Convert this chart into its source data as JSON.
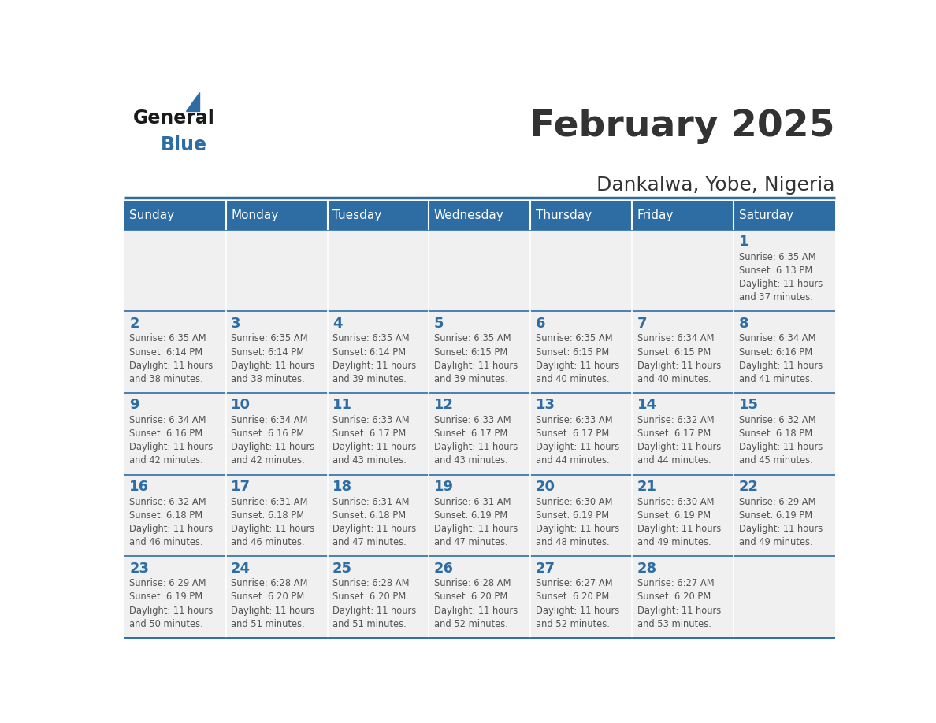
{
  "title": "February 2025",
  "subtitle": "Dankalwa, Yobe, Nigeria",
  "header_bg": "#2E6DA4",
  "header_text": "#FFFFFF",
  "cell_bg_light": "#F0F0F0",
  "text_color": "#333333",
  "day_number_color": "#2E6DA4",
  "days_of_week": [
    "Sunday",
    "Monday",
    "Tuesday",
    "Wednesday",
    "Thursday",
    "Friday",
    "Saturday"
  ],
  "calendar_data": [
    [
      null,
      null,
      null,
      null,
      null,
      null,
      {
        "day": 1,
        "sunrise": "6:35 AM",
        "sunset": "6:13 PM",
        "daylight": "11 hours and 37 minutes."
      }
    ],
    [
      {
        "day": 2,
        "sunrise": "6:35 AM",
        "sunset": "6:14 PM",
        "daylight": "11 hours and 38 minutes."
      },
      {
        "day": 3,
        "sunrise": "6:35 AM",
        "sunset": "6:14 PM",
        "daylight": "11 hours and 38 minutes."
      },
      {
        "day": 4,
        "sunrise": "6:35 AM",
        "sunset": "6:14 PM",
        "daylight": "11 hours and 39 minutes."
      },
      {
        "day": 5,
        "sunrise": "6:35 AM",
        "sunset": "6:15 PM",
        "daylight": "11 hours and 39 minutes."
      },
      {
        "day": 6,
        "sunrise": "6:35 AM",
        "sunset": "6:15 PM",
        "daylight": "11 hours and 40 minutes."
      },
      {
        "day": 7,
        "sunrise": "6:34 AM",
        "sunset": "6:15 PM",
        "daylight": "11 hours and 40 minutes."
      },
      {
        "day": 8,
        "sunrise": "6:34 AM",
        "sunset": "6:16 PM",
        "daylight": "11 hours and 41 minutes."
      }
    ],
    [
      {
        "day": 9,
        "sunrise": "6:34 AM",
        "sunset": "6:16 PM",
        "daylight": "11 hours and 42 minutes."
      },
      {
        "day": 10,
        "sunrise": "6:34 AM",
        "sunset": "6:16 PM",
        "daylight": "11 hours and 42 minutes."
      },
      {
        "day": 11,
        "sunrise": "6:33 AM",
        "sunset": "6:17 PM",
        "daylight": "11 hours and 43 minutes."
      },
      {
        "day": 12,
        "sunrise": "6:33 AM",
        "sunset": "6:17 PM",
        "daylight": "11 hours and 43 minutes."
      },
      {
        "day": 13,
        "sunrise": "6:33 AM",
        "sunset": "6:17 PM",
        "daylight": "11 hours and 44 minutes."
      },
      {
        "day": 14,
        "sunrise": "6:32 AM",
        "sunset": "6:17 PM",
        "daylight": "11 hours and 44 minutes."
      },
      {
        "day": 15,
        "sunrise": "6:32 AM",
        "sunset": "6:18 PM",
        "daylight": "11 hours and 45 minutes."
      }
    ],
    [
      {
        "day": 16,
        "sunrise": "6:32 AM",
        "sunset": "6:18 PM",
        "daylight": "11 hours and 46 minutes."
      },
      {
        "day": 17,
        "sunrise": "6:31 AM",
        "sunset": "6:18 PM",
        "daylight": "11 hours and 46 minutes."
      },
      {
        "day": 18,
        "sunrise": "6:31 AM",
        "sunset": "6:18 PM",
        "daylight": "11 hours and 47 minutes."
      },
      {
        "day": 19,
        "sunrise": "6:31 AM",
        "sunset": "6:19 PM",
        "daylight": "11 hours and 47 minutes."
      },
      {
        "day": 20,
        "sunrise": "6:30 AM",
        "sunset": "6:19 PM",
        "daylight": "11 hours and 48 minutes."
      },
      {
        "day": 21,
        "sunrise": "6:30 AM",
        "sunset": "6:19 PM",
        "daylight": "11 hours and 49 minutes."
      },
      {
        "day": 22,
        "sunrise": "6:29 AM",
        "sunset": "6:19 PM",
        "daylight": "11 hours and 49 minutes."
      }
    ],
    [
      {
        "day": 23,
        "sunrise": "6:29 AM",
        "sunset": "6:19 PM",
        "daylight": "11 hours and 50 minutes."
      },
      {
        "day": 24,
        "sunrise": "6:28 AM",
        "sunset": "6:20 PM",
        "daylight": "11 hours and 51 minutes."
      },
      {
        "day": 25,
        "sunrise": "6:28 AM",
        "sunset": "6:20 PM",
        "daylight": "11 hours and 51 minutes."
      },
      {
        "day": 26,
        "sunrise": "6:28 AM",
        "sunset": "6:20 PM",
        "daylight": "11 hours and 52 minutes."
      },
      {
        "day": 27,
        "sunrise": "6:27 AM",
        "sunset": "6:20 PM",
        "daylight": "11 hours and 52 minutes."
      },
      {
        "day": 28,
        "sunrise": "6:27 AM",
        "sunset": "6:20 PM",
        "daylight": "11 hours and 53 minutes."
      },
      null
    ]
  ]
}
